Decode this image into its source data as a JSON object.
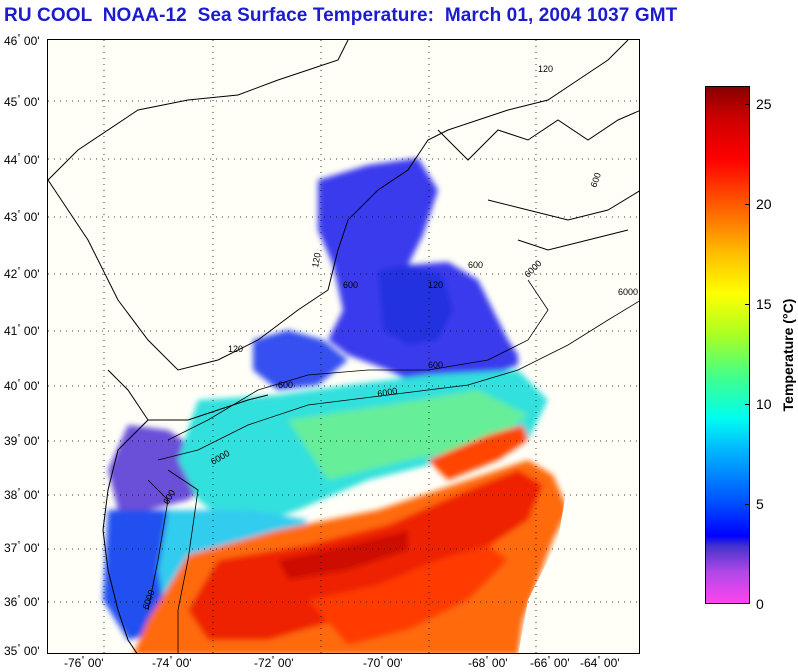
{
  "title": "RU COOL  NOAA-12  Sea Surface Temperature:  March 01, 2004 1037 GMT",
  "latitude_labels": [
    {
      "deg": "46",
      "min": "00'"
    },
    {
      "deg": "45",
      "min": "00'"
    },
    {
      "deg": "44",
      "min": "00'"
    },
    {
      "deg": "43",
      "min": "00'"
    },
    {
      "deg": "42",
      "min": "00'"
    },
    {
      "deg": "41",
      "min": "00'"
    },
    {
      "deg": "40",
      "min": "00'"
    },
    {
      "deg": "39",
      "min": "00'"
    },
    {
      "deg": "38",
      "min": "00'"
    },
    {
      "deg": "37",
      "min": "00'"
    },
    {
      "deg": "36",
      "min": "00'"
    },
    {
      "deg": "35",
      "min": "00'"
    }
  ],
  "longitude_labels": [
    {
      "deg": "-76",
      "min": "00'"
    },
    {
      "deg": "-74",
      "min": "00'"
    },
    {
      "deg": "-72",
      "min": "00'"
    },
    {
      "deg": "-70",
      "min": "00'"
    },
    {
      "deg": "-68",
      "min": "00'"
    },
    {
      "deg": "-66",
      "min": "00'"
    },
    {
      "deg": "-64",
      "min": "00'"
    }
  ],
  "colorbar": {
    "label": "Temperature (°C)",
    "ticks": [
      "25",
      "20",
      "15",
      "10",
      "5",
      "0"
    ],
    "range": [
      0,
      26
    ],
    "colors": [
      "#ff44ee",
      "#4433cc",
      "#0000ff",
      "#00bbff",
      "#00ffee",
      "#aaff22",
      "#ffff00",
      "#ff6600",
      "#ff0000",
      "#880000"
    ]
  },
  "contour_labels": [
    "120",
    "600",
    "6000",
    "600",
    "120",
    "6000",
    "600",
    "6000",
    "600",
    "120",
    "600",
    "6000",
    "600",
    "120",
    "6000"
  ]
}
